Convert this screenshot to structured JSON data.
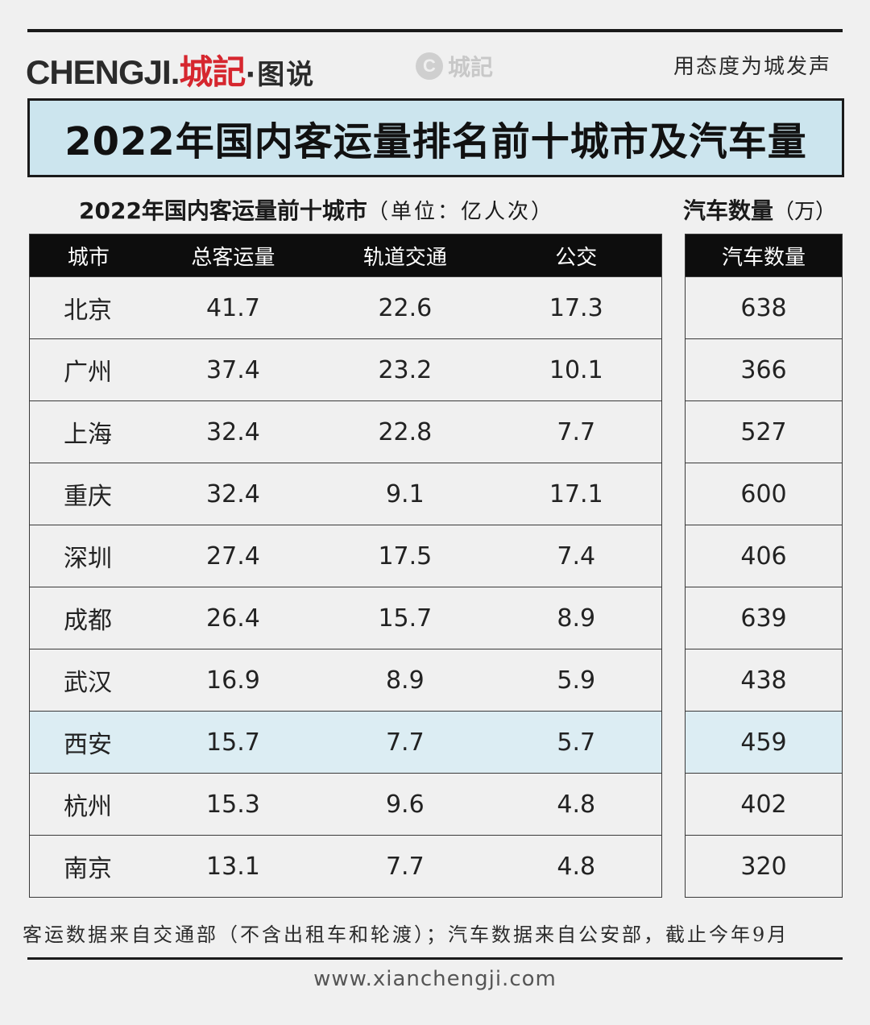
{
  "header": {
    "logo_text": "CHENGJI.",
    "logo_red": "城記",
    "logo_sub": "·图说",
    "watermark": "城記",
    "slogan": "用态度为城发声"
  },
  "title": "2022年国内客运量排名前十城市及汽车量",
  "table_title": "2022年国内客运量前十城市",
  "table_unit": "（单位：亿人次）",
  "car_title": "汽车数量",
  "car_unit": "（万）",
  "columns": [
    "城市",
    "总客运量",
    "轨道交通",
    "公交"
  ],
  "car_column": "汽车数量",
  "rows": [
    {
      "city": "北京",
      "total": "41.7",
      "rail": "22.6",
      "bus": "17.3",
      "cars": "638"
    },
    {
      "city": "广州",
      "total": "37.4",
      "rail": "23.2",
      "bus": "10.1",
      "cars": "366"
    },
    {
      "city": "上海",
      "total": "32.4",
      "rail": "22.8",
      "bus": "7.7",
      "cars": "527"
    },
    {
      "city": "重庆",
      "total": "32.4",
      "rail": "9.1",
      "bus": "17.1",
      "cars": "600"
    },
    {
      "city": "深圳",
      "total": "27.4",
      "rail": "17.5",
      "bus": "7.4",
      "cars": "406"
    },
    {
      "city": "成都",
      "total": "26.4",
      "rail": "15.7",
      "bus": "8.9",
      "cars": "639"
    },
    {
      "city": "武汉",
      "total": "16.9",
      "rail": "8.9",
      "bus": "5.9",
      "cars": "438"
    },
    {
      "city": "西安",
      "total": "15.7",
      "rail": "7.7",
      "bus": "5.7",
      "cars": "459"
    },
    {
      "city": "杭州",
      "total": "15.3",
      "rail": "9.6",
      "bus": "4.8",
      "cars": "402"
    },
    {
      "city": "南京",
      "total": "13.1",
      "rail": "7.7",
      "bus": "4.8",
      "cars": "320"
    }
  ],
  "highlight_city": "西安",
  "colors": {
    "title_bg": "#cce5ee",
    "highlight_bg": "#dcedf3",
    "logo_red": "#d6262e",
    "header_bg": "#0d0d0d"
  },
  "footnote": "客运数据来自交通部（不含出租车和轮渡）；汽车数据来自公安部，截止今年9月",
  "website": "www.xianchengji.com"
}
